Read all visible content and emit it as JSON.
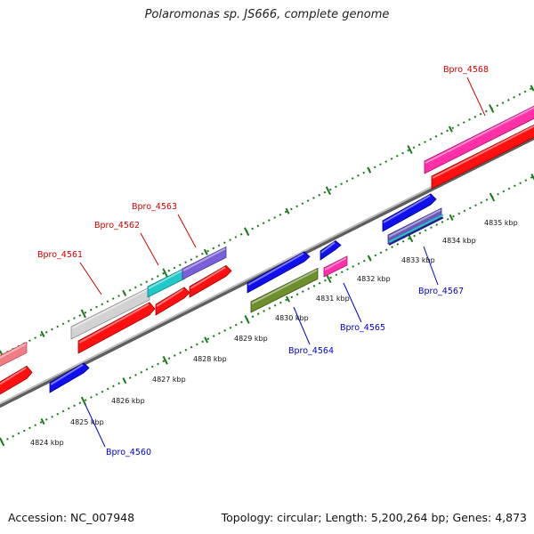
{
  "title": "Polaromonas sp. JS666, complete genome",
  "footer": {
    "accession": "Accession: NC_007948",
    "summary": "Topology: circular; Length: 5,200,264 bp; Genes: 4,873"
  },
  "colors": {
    "label_red": "#d40000",
    "label_blue": "#0000cc",
    "tick_green": "#1a7a1a",
    "backbone": "#8a8a8a"
  },
  "kbp_ticks": [
    "4824 kbp",
    "4825 kbp",
    "4826 kbp",
    "4827 kbp",
    "4828 kbp",
    "4829 kbp",
    "4830 kbp",
    "4831 kbp",
    "4832 kbp",
    "4833 kbp",
    "4834 kbp",
    "4835 kbp"
  ],
  "gene_labels": {
    "bpro_4560": "Bpro_4560",
    "bpro_4561": "Bpro_4561",
    "bpro_4562": "Bpro_4562",
    "bpro_4563": "Bpro_4563",
    "bpro_4564": "Bpro_4564",
    "bpro_4565": "Bpro_4565",
    "bpro_4567": "Bpro_4567",
    "bpro_4568": "Bpro_4568"
  }
}
